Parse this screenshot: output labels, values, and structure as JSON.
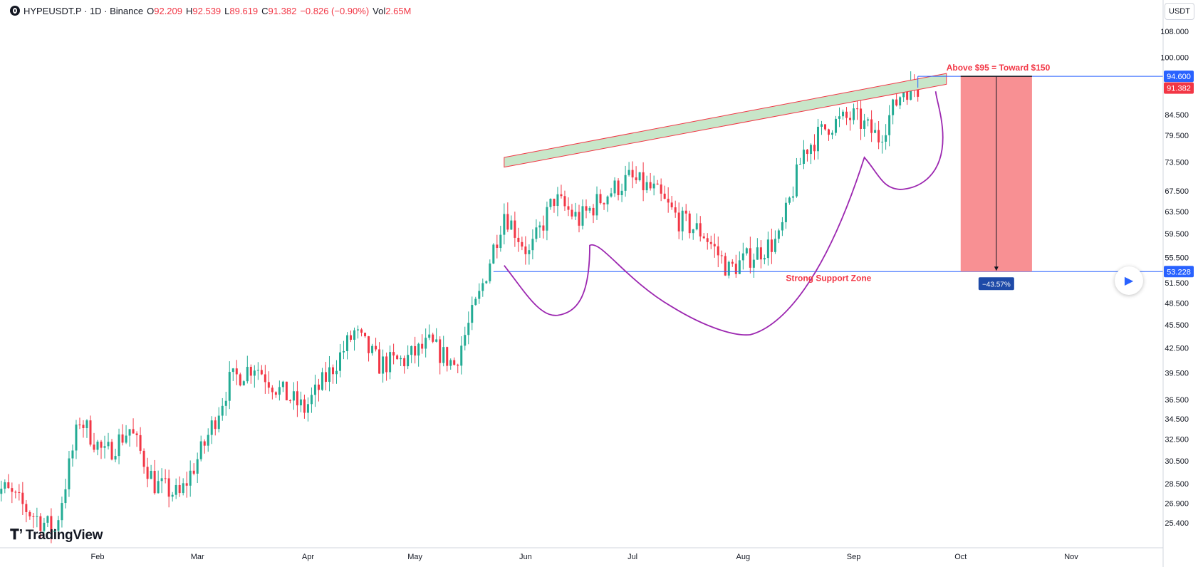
{
  "header": {
    "symbol": "HYPEUSDT.P · 1D · Binance",
    "open_label": "O",
    "open": "92.209",
    "high_label": "H",
    "high": "92.539",
    "low_label": "L",
    "low": "89.619",
    "close_label": "C",
    "close": "91.382",
    "change": "−0.826 (−0.90%)",
    "vol_label": "Vol",
    "vol": "2.65M"
  },
  "currency_unit": "USDT",
  "brand": "TradingView",
  "colors": {
    "up": "#22ab94",
    "down": "#f23645",
    "support_line": "#2962ff",
    "curve": "#9c27b0",
    "channel_fill": "#c8e6c9",
    "projection_box": "#f77c80",
    "annotation_text": "#f23645",
    "badge_blue": "#2962ff",
    "badge_red": "#f23645",
    "badge_navy": "#1e4aa8"
  },
  "chart_data": {
    "type": "candlestick",
    "x_tick_labels": [
      "Feb",
      "Mar",
      "Apr",
      "May",
      "Jun",
      "Jul",
      "Aug",
      "Sep",
      "Oct",
      "Nov"
    ],
    "y_tick_labels": [
      "108.000",
      "100.000",
      "84.500",
      "79.500",
      "73.500",
      "67.500",
      "63.500",
      "59.500",
      "55.500",
      "51.500",
      "48.500",
      "45.500",
      "42.500",
      "39.500",
      "36.500",
      "34.500",
      "32.500",
      "30.500",
      "28.500",
      "26.900",
      "25.400"
    ],
    "y_scale": "log",
    "ylim": [
      24.5,
      116
    ],
    "annotations": {
      "resistance_label": "Above $95 = Toward $150",
      "support_label": "Strong Support Zone",
      "support_level": 53.228,
      "top_level": 94.6,
      "last_price": 91.382,
      "projection_pct": "−43.57%",
      "price_badges": [
        "94.600",
        "91.382",
        "53.228"
      ]
    },
    "series": [
      {
        "x": [
          "2025-01-06",
          "2025-01-13",
          "2025-01-20",
          "2025-01-27",
          "2025-02-03",
          "2025-02-10",
          "2025-02-17",
          "2025-02-24",
          "2025-03-03",
          "2025-03-10",
          "2025-03-17",
          "2025-03-24",
          "2025-03-31",
          "2025-04-07",
          "2025-04-14",
          "2025-04-21",
          "2025-04-28",
          "2025-05-05",
          "2025-05-12",
          "2025-05-19",
          "2025-05-26",
          "2025-06-02",
          "2025-06-09",
          "2025-06-16",
          "2025-06-23",
          "2025-06-30",
          "2025-07-07",
          "2025-07-14",
          "2025-07-21",
          "2025-07-28",
          "2025-08-04",
          "2025-08-11",
          "2025-08-18",
          "2025-08-25",
          "2025-09-01",
          "2025-09-08",
          "2025-09-15"
        ],
        "close": [
          28.0,
          26.2,
          24.8,
          34.5,
          31.0,
          33.5,
          28.5,
          27.5,
          32.0,
          38.5,
          40.5,
          37.5,
          35.5,
          39.5,
          44.5,
          40.5,
          41.0,
          43.0,
          40.5,
          49.5,
          63.5,
          56.0,
          66.0,
          62.0,
          66.5,
          70.0,
          67.5,
          62.0,
          59.5,
          53.5,
          56.0,
          58.5,
          76.0,
          82.0,
          84.0,
          79.0,
          91.4
        ]
      }
    ]
  }
}
